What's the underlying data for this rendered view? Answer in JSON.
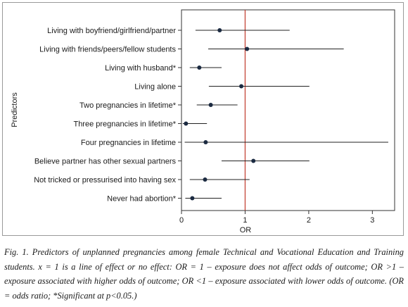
{
  "chart_data": {
    "type": "forest",
    "ylabel": "Predictors",
    "xlabel": "OR",
    "xlim": [
      0,
      3.35
    ],
    "xticks": [
      "0",
      "1",
      "2",
      "3"
    ],
    "reference_line": {
      "x": 1,
      "color": "#c0392b"
    },
    "point_color": "#1b2a41",
    "line_color": "#222222",
    "rows": [
      {
        "label": "Living with boyfriend/girlfriend/partner",
        "or": 0.6,
        "lower": 0.22,
        "upper": 1.7
      },
      {
        "label": "Living with friends/peers/fellow students",
        "or": 1.03,
        "lower": 0.42,
        "upper": 2.55
      },
      {
        "label": "Living with husband*",
        "or": 0.28,
        "lower": 0.13,
        "upper": 0.63
      },
      {
        "label": "Living alone",
        "or": 0.94,
        "lower": 0.43,
        "upper": 2.01
      },
      {
        "label": "Two pregnancies in lifetime*",
        "or": 0.46,
        "lower": 0.24,
        "upper": 0.88
      },
      {
        "label": "Three pregnancies in lifetime*",
        "or": 0.07,
        "lower": 0.02,
        "upper": 0.4
      },
      {
        "label": "Four pregnancies in lifetime",
        "or": 0.38,
        "lower": 0.05,
        "upper": 3.25
      },
      {
        "label": "Believe partner has other sexual partners",
        "or": 1.13,
        "lower": 0.63,
        "upper": 2.01
      },
      {
        "label": "Not tricked or pressurised into having sex",
        "or": 0.37,
        "lower": 0.13,
        "upper": 1.07
      },
      {
        "label": "Never had abortion*",
        "or": 0.17,
        "lower": 0.06,
        "upper": 0.63
      }
    ]
  },
  "caption": "Fig. 1. Predictors of unplanned pregnancies among female Technical and Vocational Education and Training students. x = 1 is a line of effect or no effect: OR = 1 – exposure does not affect odds of outcome; OR >1 – exposure associated with higher odds of outcome; OR <1 – exposure associated with lower odds of outcome. (OR = odds ratio; *Significant at p<0.05.)"
}
